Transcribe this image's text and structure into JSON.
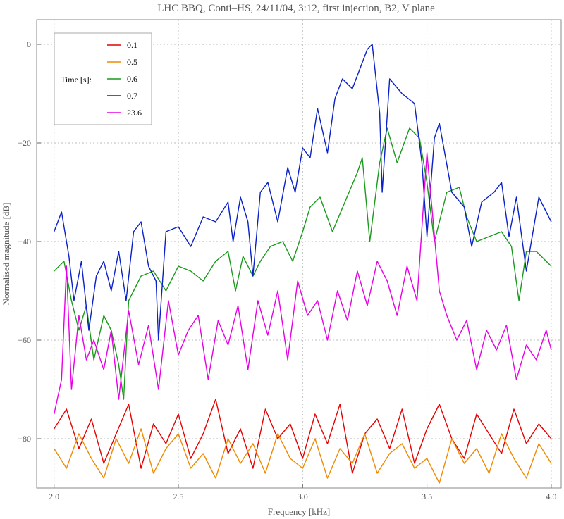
{
  "chart_data": {
    "type": "line",
    "title": "LHC BBQ,  Conti–HS,  24/11/04,  3:12,  first injection,  B2,  V plane",
    "xlabel": "Frequency  [kHz]",
    "ylabel": "Normalised  magnitude  [dB]",
    "xlim": [
      1.93,
      4.04
    ],
    "ylim": [
      -90,
      5
    ],
    "xticks": [
      2.0,
      2.5,
      3.0,
      3.5,
      4.0
    ],
    "xtick_labels": [
      "2.0",
      "2.5",
      "3.0",
      "3.5",
      "4.0"
    ],
    "yticks": [
      -80,
      -60,
      -40,
      -20,
      0
    ],
    "ytick_labels": [
      "−80",
      "−60",
      "−40",
      "−20",
      "0"
    ],
    "grid": true,
    "legend": {
      "title": "Time  [s]:",
      "placement": "top-left",
      "entries": [
        "0.1",
        "0.5",
        "0.6",
        "0.7",
        "23.6"
      ]
    },
    "series": [
      {
        "name": "0.1",
        "color": "#e60000",
        "x": [
          2.0,
          2.05,
          2.1,
          2.15,
          2.2,
          2.25,
          2.3,
          2.35,
          2.4,
          2.45,
          2.5,
          2.55,
          2.6,
          2.65,
          2.7,
          2.75,
          2.8,
          2.85,
          2.9,
          2.95,
          3.0,
          3.05,
          3.1,
          3.15,
          3.2,
          3.25,
          3.3,
          3.35,
          3.4,
          3.45,
          3.5,
          3.55,
          3.6,
          3.65,
          3.7,
          3.75,
          3.8,
          3.85,
          3.9,
          3.95,
          4.0
        ],
        "y": [
          -78,
          -74,
          -82,
          -76,
          -85,
          -79,
          -73,
          -86,
          -77,
          -81,
          -75,
          -84,
          -79,
          -72,
          -83,
          -78,
          -86,
          -74,
          -80,
          -77,
          -84,
          -75,
          -81,
          -73,
          -87,
          -79,
          -76,
          -82,
          -74,
          -85,
          -78,
          -73,
          -80,
          -84,
          -75,
          -79,
          -83,
          -74,
          -81,
          -77,
          -80
        ]
      },
      {
        "name": "0.5",
        "color": "#f08a00",
        "x": [
          2.0,
          2.05,
          2.1,
          2.15,
          2.2,
          2.25,
          2.3,
          2.35,
          2.4,
          2.45,
          2.5,
          2.55,
          2.6,
          2.65,
          2.7,
          2.75,
          2.8,
          2.85,
          2.9,
          2.95,
          3.0,
          3.05,
          3.1,
          3.15,
          3.2,
          3.25,
          3.3,
          3.35,
          3.4,
          3.45,
          3.5,
          3.55,
          3.6,
          3.65,
          3.7,
          3.75,
          3.8,
          3.85,
          3.9,
          3.95,
          4.0
        ],
        "y": [
          -82,
          -86,
          -79,
          -84,
          -88,
          -80,
          -85,
          -78,
          -87,
          -82,
          -79,
          -86,
          -83,
          -88,
          -80,
          -85,
          -81,
          -87,
          -79,
          -84,
          -86,
          -80,
          -88,
          -82,
          -85,
          -79,
          -87,
          -83,
          -81,
          -86,
          -84,
          -89,
          -80,
          -85,
          -82,
          -87,
          -79,
          -84,
          -88,
          -81,
          -85
        ]
      },
      {
        "name": "0.6",
        "color": "#1a9a1a",
        "x": [
          2.0,
          2.04,
          2.07,
          2.1,
          2.13,
          2.16,
          2.2,
          2.23,
          2.26,
          2.28,
          2.3,
          2.35,
          2.4,
          2.45,
          2.5,
          2.55,
          2.6,
          2.65,
          2.7,
          2.73,
          2.76,
          2.8,
          2.83,
          2.87,
          2.92,
          2.96,
          3.0,
          3.03,
          3.07,
          3.12,
          3.17,
          3.22,
          3.24,
          3.27,
          3.31,
          3.34,
          3.38,
          3.43,
          3.47,
          3.5,
          3.53,
          3.58,
          3.63,
          3.66,
          3.7,
          3.75,
          3.8,
          3.84,
          3.87,
          3.9,
          3.94,
          4.0
        ],
        "y": [
          -46,
          -44,
          -52,
          -58,
          -53,
          -64,
          -55,
          -58,
          -65,
          -72,
          -52,
          -47,
          -46,
          -50,
          -45,
          -46,
          -48,
          -44,
          -42,
          -50,
          -43,
          -47,
          -44,
          -41,
          -40,
          -44,
          -38,
          -33,
          -31,
          -38,
          -32,
          -26,
          -23,
          -40,
          -24,
          -17,
          -24,
          -17,
          -19,
          -28,
          -40,
          -30,
          -29,
          -35,
          -40,
          -39,
          -38,
          -41,
          -52,
          -42,
          -42,
          -45
        ]
      },
      {
        "name": "0.7",
        "color": "#0a20c8",
        "x": [
          2.0,
          2.03,
          2.06,
          2.08,
          2.11,
          2.14,
          2.17,
          2.2,
          2.23,
          2.26,
          2.29,
          2.32,
          2.35,
          2.38,
          2.41,
          2.42,
          2.45,
          2.5,
          2.55,
          2.6,
          2.65,
          2.7,
          2.72,
          2.75,
          2.78,
          2.8,
          2.83,
          2.86,
          2.9,
          2.94,
          2.97,
          3.0,
          3.03,
          3.06,
          3.1,
          3.13,
          3.16,
          3.2,
          3.23,
          3.26,
          3.28,
          3.31,
          3.32,
          3.35,
          3.4,
          3.45,
          3.48,
          3.5,
          3.53,
          3.55,
          3.6,
          3.65,
          3.68,
          3.72,
          3.77,
          3.8,
          3.83,
          3.86,
          3.9,
          3.95,
          4.0
        ],
        "y": [
          -38,
          -34,
          -43,
          -52,
          -44,
          -58,
          -47,
          -44,
          -50,
          -42,
          -52,
          -38,
          -36,
          -45,
          -48,
          -60,
          -38,
          -37,
          -41,
          -35,
          -36,
          -32,
          -40,
          -31,
          -36,
          -47,
          -30,
          -28,
          -36,
          -25,
          -30,
          -21,
          -23,
          -13,
          -22,
          -11,
          -7,
          -9,
          -5,
          -1,
          0,
          -14,
          -30,
          -7,
          -10,
          -12,
          -24,
          -39,
          -19,
          -16,
          -30,
          -33,
          -41,
          -32,
          -30,
          -28,
          -39,
          -31,
          -46,
          -31,
          -36
        ]
      },
      {
        "name": "23.6",
        "color": "#e600e6",
        "x": [
          2.0,
          2.03,
          2.05,
          2.07,
          2.1,
          2.13,
          2.16,
          2.2,
          2.23,
          2.26,
          2.3,
          2.34,
          2.38,
          2.42,
          2.46,
          2.5,
          2.54,
          2.58,
          2.62,
          2.66,
          2.7,
          2.74,
          2.78,
          2.82,
          2.86,
          2.9,
          2.94,
          2.98,
          3.02,
          3.06,
          3.1,
          3.14,
          3.18,
          3.22,
          3.26,
          3.3,
          3.34,
          3.38,
          3.42,
          3.46,
          3.5,
          3.52,
          3.55,
          3.58,
          3.62,
          3.66,
          3.7,
          3.74,
          3.78,
          3.82,
          3.86,
          3.9,
          3.94,
          3.98,
          4.0
        ],
        "y": [
          -75,
          -68,
          -45,
          -70,
          -55,
          -64,
          -60,
          -66,
          -58,
          -72,
          -54,
          -65,
          -57,
          -70,
          -52,
          -63,
          -58,
          -55,
          -68,
          -56,
          -61,
          -53,
          -66,
          -52,
          -59,
          -50,
          -64,
          -48,
          -55,
          -52,
          -60,
          -50,
          -56,
          -46,
          -53,
          -44,
          -48,
          -55,
          -45,
          -52,
          -22,
          -33,
          -50,
          -55,
          -60,
          -56,
          -66,
          -58,
          -62,
          -57,
          -68,
          -61,
          -64,
          -58,
          -62
        ]
      }
    ]
  }
}
